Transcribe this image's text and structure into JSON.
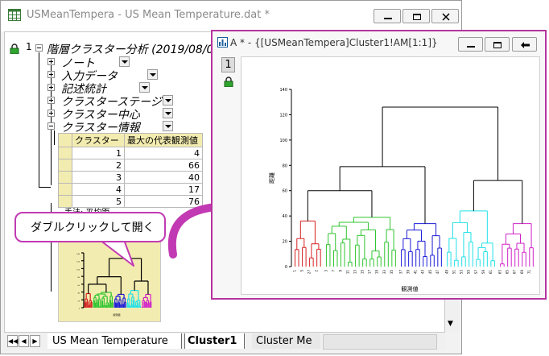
{
  "main_window": {
    "title": "USMeanTempera - US Mean Temperature.dat *"
  },
  "tree": {
    "root_index": "1",
    "root_label": "階層クラスター分析 (2019/08/0",
    "items": [
      {
        "label": "ノート"
      },
      {
        "label": "入力データ"
      },
      {
        "label": "記述統計"
      },
      {
        "label": "クラスターステージ"
      },
      {
        "label": "クラスター中心"
      },
      {
        "label": "クラスター情報"
      }
    ]
  },
  "cluster_table": {
    "headers": [
      "クラスター",
      "最大の代表観測値"
    ],
    "rows": [
      {
        "cluster": "1",
        "value": "4"
      },
      {
        "cluster": "2",
        "value": "66"
      },
      {
        "cluster": "3",
        "value": "40"
      },
      {
        "cluster": "4",
        "value": "17"
      },
      {
        "cluster": "5",
        "value": "76"
      }
    ],
    "footnote": "手法: 平均距"
  },
  "callout": {
    "text": "ダブルクリックして開く"
  },
  "sheet_tabs": {
    "nav": [
      "◀◀",
      "◀",
      "▶"
    ],
    "tabs": [
      {
        "label": "US Mean Temperature",
        "active": false
      },
      {
        "label": "Cluster1",
        "active": true
      },
      {
        "label": "Cluster Me",
        "active": false
      }
    ]
  },
  "graph_window": {
    "title": "A * - {[USMeanTempera]Cluster1!AM[1:1]}",
    "layer": "1"
  },
  "chart_data": {
    "type": "dendrogram",
    "ylabel": "距離",
    "xlabel": "観測値",
    "ylim": [
      0,
      140
    ],
    "yticks": [
      0,
      20,
      40,
      60,
      80,
      100,
      120,
      140
    ],
    "leaves": [
      "1",
      "4",
      "5",
      "24",
      "27",
      "23",
      "2",
      "5",
      "3",
      "6",
      "7",
      "8",
      "9",
      "10",
      "11",
      "12",
      "13",
      "14",
      "15",
      "16",
      "17",
      "18",
      "19",
      "20",
      "33",
      "34",
      "35",
      "36",
      "37",
      "38",
      "39",
      "40",
      "41",
      "42",
      "43",
      "44",
      "45",
      "46",
      "47",
      "48",
      "49",
      "50",
      "51",
      "52",
      "53",
      "54",
      "55",
      "56",
      "57",
      "58",
      "59",
      "60",
      "61",
      "62",
      "63",
      "64",
      "65",
      "66",
      "67",
      "68",
      "69",
      "70",
      "71",
      "72",
      "73",
      "74",
      "75",
      "76",
      "77",
      "78",
      "79",
      "80",
      "81",
      "82",
      "83",
      "84"
    ],
    "clusters": [
      {
        "name": "1",
        "color": "#d62020",
        "merge_height": 36
      },
      {
        "name": "2",
        "color": "#2ec52e",
        "merge_height": 39
      },
      {
        "name": "3",
        "color": "#1a1ad8",
        "merge_height": 34
      },
      {
        "name": "4",
        "color": "#20e0e8",
        "merge_height": 44
      },
      {
        "name": "5",
        "color": "#d020c8",
        "merge_height": 34
      }
    ],
    "upper_merges": [
      {
        "children": [
          "1",
          "2"
        ],
        "height": 60
      },
      {
        "children": [
          "1-2",
          "3"
        ],
        "height": 79
      },
      {
        "children": [
          "4",
          "5"
        ],
        "height": 68
      },
      {
        "children": [
          "1-2-3",
          "4-5"
        ],
        "height": 126
      }
    ]
  },
  "colors": {
    "accent": "#b5349f",
    "table_header": "#f3ecb0"
  }
}
